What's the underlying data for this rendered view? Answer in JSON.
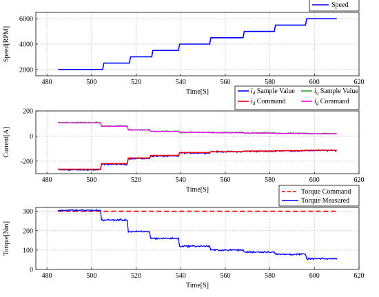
{
  "chart_data": [
    {
      "type": "line",
      "xlabel": "Time[S]",
      "ylabel": "Speed[RPM]",
      "xlim": [
        475,
        620
      ],
      "ylim": [
        1500,
        6500
      ],
      "xticks": [
        480,
        500,
        520,
        540,
        560,
        580,
        600,
        620
      ],
      "yticks": [
        2000,
        4000,
        6000
      ],
      "grid": true,
      "legend_position": "top-right",
      "series": [
        {
          "name": "Speed",
          "color": "#0000ff",
          "style": "solid",
          "x": [
            485,
            505,
            505.5,
            517,
            517.5,
            527,
            527.5,
            539,
            539.5,
            553,
            553.5,
            568,
            568.5,
            582,
            582.5,
            596,
            596.5,
            610
          ],
          "y": [
            2000,
            2000,
            2500,
            2500,
            3000,
            3000,
            3500,
            3500,
            4000,
            4000,
            4500,
            4500,
            5000,
            5000,
            5500,
            5500,
            6000,
            6000
          ]
        }
      ]
    },
    {
      "type": "line",
      "xlabel": "Time[S]",
      "ylabel": "Current[A]",
      "xlim": [
        475,
        620
      ],
      "ylim": [
        -300,
        200
      ],
      "xticks": [
        480,
        500,
        520,
        540,
        560,
        580,
        600,
        620
      ],
      "yticks": [
        -200,
        0,
        200
      ],
      "grid": true,
      "legend_position": "top-right",
      "series": [
        {
          "name": "id Sample Value",
          "color": "#0000ff",
          "style": "noisy",
          "noise": 9,
          "x": [
            485,
            504,
            504.5,
            516,
            516.5,
            526,
            526.5,
            539,
            539.5,
            553,
            553.5,
            568,
            568.5,
            582,
            582.5,
            596,
            596.5,
            610
          ],
          "y": [
            -270,
            -270,
            -225,
            -225,
            -180,
            -180,
            -160,
            -160,
            -135,
            -135,
            -125,
            -125,
            -122,
            -122,
            -118,
            -118,
            -115,
            -115
          ]
        },
        {
          "name": "id Command",
          "color": "#ff0000",
          "style": "solid",
          "x": [
            485,
            504,
            504.5,
            516,
            516.5,
            526,
            526.5,
            539,
            539.5,
            553,
            553.5,
            568,
            568.5,
            582,
            582.5,
            596,
            596.5,
            610
          ],
          "y": [
            -265,
            -265,
            -220,
            -220,
            -175,
            -175,
            -155,
            -155,
            -132,
            -132,
            -125,
            -125,
            -120,
            -120,
            -117,
            -117,
            -113,
            -113
          ]
        },
        {
          "name": "iq Sample Value",
          "color": "#2ea52e",
          "style": "noisy",
          "noise": 7,
          "x": [
            485,
            504,
            504.5,
            516,
            516.5,
            526,
            526.5,
            539,
            539.5,
            553,
            553.5,
            568,
            568.5,
            582,
            582.5,
            596,
            596.5,
            610
          ],
          "y": [
            108,
            108,
            80,
            80,
            50,
            50,
            38,
            38,
            30,
            30,
            28,
            28,
            25,
            25,
            22,
            22,
            20,
            20
          ]
        },
        {
          "name": "iq Command",
          "color": "#ff00ff",
          "style": "noisy",
          "noise": 3,
          "x": [
            485,
            504,
            504.5,
            516,
            516.5,
            526,
            526.5,
            539,
            539.5,
            553,
            553.5,
            568,
            568.5,
            582,
            582.5,
            596,
            596.5,
            610
          ],
          "y": [
            105,
            105,
            78,
            78,
            48,
            48,
            36,
            36,
            29,
            29,
            26,
            26,
            23,
            23,
            20,
            20,
            18,
            18
          ]
        }
      ]
    },
    {
      "type": "line",
      "xlabel": "Time[S]",
      "ylabel": "Torque[Nm]",
      "xlim": [
        475,
        620
      ],
      "ylim": [
        0,
        320
      ],
      "xticks": [
        480,
        500,
        520,
        540,
        560,
        580,
        600,
        620
      ],
      "yticks": [
        0,
        100,
        200,
        300
      ],
      "grid": true,
      "legend_position": "top-right",
      "series": [
        {
          "name": "Torque Command",
          "color": "#ff0000",
          "style": "dashed",
          "x": [
            485,
            610
          ],
          "y": [
            300,
            300
          ]
        },
        {
          "name": "Torque Measured",
          "color": "#0000ff",
          "style": "noisy",
          "noise": 7,
          "x": [
            485,
            504,
            504.5,
            516,
            516.5,
            526,
            526.5,
            539,
            539.5,
            553,
            553.5,
            568,
            568.5,
            582,
            582.5,
            596,
            596.5,
            610
          ],
          "y": [
            305,
            305,
            255,
            255,
            195,
            195,
            160,
            160,
            120,
            120,
            100,
            100,
            90,
            90,
            78,
            78,
            55,
            55
          ]
        }
      ]
    }
  ]
}
